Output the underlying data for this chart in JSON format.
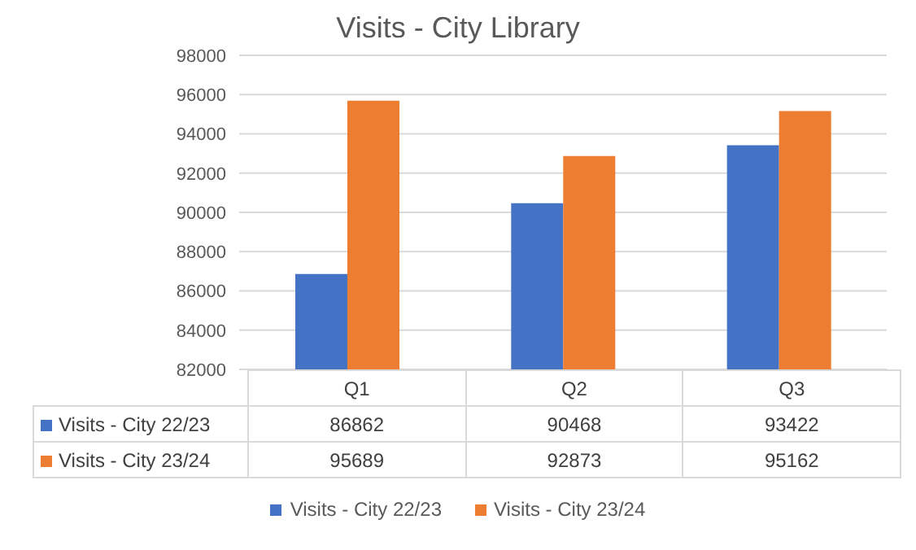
{
  "chart_data": {
    "type": "bar",
    "title": "Visits - City Library",
    "categories": [
      "Q1",
      "Q2",
      "Q3"
    ],
    "series": [
      {
        "name": "Visits - City 22/23",
        "color": "#4472c4",
        "values": [
          86862,
          90468,
          93422
        ]
      },
      {
        "name": "Visits - City 23/24",
        "color": "#ed7d31",
        "values": [
          95689,
          92873,
          95162
        ]
      }
    ],
    "ylim": [
      82000,
      98000
    ],
    "yticks": [
      82000,
      84000,
      86000,
      88000,
      90000,
      92000,
      94000,
      96000,
      98000
    ],
    "grid": "y",
    "legend": "bottom",
    "data_labels": true
  }
}
